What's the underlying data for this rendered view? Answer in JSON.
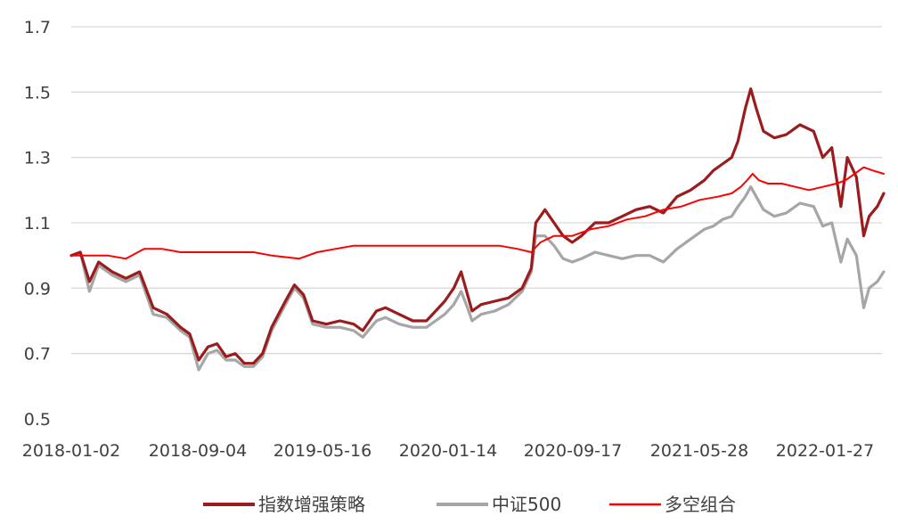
{
  "chart_data": {
    "type": "line",
    "title": "",
    "xlabel": "",
    "ylabel": "",
    "ylim": [
      0.5,
      1.7
    ],
    "yticks": [
      "0.5",
      "0.7",
      "0.9",
      "1.1",
      "1.3",
      "1.5",
      "1.7"
    ],
    "xticks": [
      "2018-01-02",
      "2018-09-04",
      "2019-05-16",
      "2020-01-14",
      "2020-09-17",
      "2021-05-28",
      "2022-01-27"
    ],
    "grid": true,
    "legend_position": "bottom",
    "series": [
      {
        "name": "指数增强策略",
        "color": "#9b1c1c",
        "points": [
          [
            0,
            1.0
          ],
          [
            10,
            1.01
          ],
          [
            20,
            0.92
          ],
          [
            30,
            0.98
          ],
          [
            45,
            0.95
          ],
          [
            60,
            0.93
          ],
          [
            75,
            0.95
          ],
          [
            90,
            0.84
          ],
          [
            105,
            0.82
          ],
          [
            120,
            0.78
          ],
          [
            130,
            0.76
          ],
          [
            140,
            0.68
          ],
          [
            150,
            0.72
          ],
          [
            160,
            0.73
          ],
          [
            170,
            0.69
          ],
          [
            180,
            0.7
          ],
          [
            190,
            0.67
          ],
          [
            200,
            0.67
          ],
          [
            210,
            0.7
          ],
          [
            220,
            0.78
          ],
          [
            235,
            0.86
          ],
          [
            245,
            0.91
          ],
          [
            255,
            0.88
          ],
          [
            265,
            0.8
          ],
          [
            280,
            0.79
          ],
          [
            295,
            0.8
          ],
          [
            310,
            0.79
          ],
          [
            320,
            0.77
          ],
          [
            335,
            0.83
          ],
          [
            345,
            0.84
          ],
          [
            360,
            0.82
          ],
          [
            375,
            0.8
          ],
          [
            390,
            0.8
          ],
          [
            400,
            0.83
          ],
          [
            410,
            0.86
          ],
          [
            420,
            0.9
          ],
          [
            428,
            0.95
          ],
          [
            435,
            0.88
          ],
          [
            440,
            0.83
          ],
          [
            450,
            0.85
          ],
          [
            465,
            0.86
          ],
          [
            480,
            0.87
          ],
          [
            495,
            0.9
          ],
          [
            505,
            0.96
          ],
          [
            510,
            1.1
          ],
          [
            520,
            1.14
          ],
          [
            530,
            1.1
          ],
          [
            540,
            1.06
          ],
          [
            550,
            1.04
          ],
          [
            560,
            1.06
          ],
          [
            575,
            1.1
          ],
          [
            590,
            1.1
          ],
          [
            605,
            1.12
          ],
          [
            620,
            1.14
          ],
          [
            635,
            1.15
          ],
          [
            650,
            1.13
          ],
          [
            665,
            1.18
          ],
          [
            680,
            1.2
          ],
          [
            695,
            1.23
          ],
          [
            705,
            1.26
          ],
          [
            715,
            1.28
          ],
          [
            725,
            1.3
          ],
          [
            732,
            1.35
          ],
          [
            740,
            1.45
          ],
          [
            746,
            1.51
          ],
          [
            752,
            1.45
          ],
          [
            760,
            1.38
          ],
          [
            772,
            1.36
          ],
          [
            785,
            1.37
          ],
          [
            800,
            1.4
          ],
          [
            815,
            1.38
          ],
          [
            825,
            1.3
          ],
          [
            835,
            1.33
          ],
          [
            845,
            1.15
          ],
          [
            852,
            1.3
          ],
          [
            862,
            1.24
          ],
          [
            870,
            1.06
          ],
          [
            876,
            1.12
          ],
          [
            885,
            1.15
          ],
          [
            892,
            1.19
          ]
        ]
      },
      {
        "name": "中证500",
        "color": "#a6a6a6",
        "points": [
          [
            0,
            1.0
          ],
          [
            10,
            1.01
          ],
          [
            20,
            0.89
          ],
          [
            30,
            0.97
          ],
          [
            45,
            0.94
          ],
          [
            60,
            0.92
          ],
          [
            75,
            0.94
          ],
          [
            90,
            0.82
          ],
          [
            105,
            0.81
          ],
          [
            120,
            0.77
          ],
          [
            130,
            0.75
          ],
          [
            140,
            0.65
          ],
          [
            150,
            0.7
          ],
          [
            160,
            0.71
          ],
          [
            170,
            0.68
          ],
          [
            180,
            0.68
          ],
          [
            190,
            0.66
          ],
          [
            200,
            0.66
          ],
          [
            210,
            0.69
          ],
          [
            220,
            0.77
          ],
          [
            235,
            0.85
          ],
          [
            245,
            0.9
          ],
          [
            255,
            0.87
          ],
          [
            265,
            0.79
          ],
          [
            280,
            0.78
          ],
          [
            295,
            0.78
          ],
          [
            310,
            0.77
          ],
          [
            320,
            0.75
          ],
          [
            335,
            0.8
          ],
          [
            345,
            0.81
          ],
          [
            360,
            0.79
          ],
          [
            375,
            0.78
          ],
          [
            390,
            0.78
          ],
          [
            400,
            0.8
          ],
          [
            410,
            0.82
          ],
          [
            420,
            0.85
          ],
          [
            428,
            0.89
          ],
          [
            435,
            0.84
          ],
          [
            440,
            0.8
          ],
          [
            450,
            0.82
          ],
          [
            465,
            0.83
          ],
          [
            480,
            0.85
          ],
          [
            495,
            0.89
          ],
          [
            505,
            0.95
          ],
          [
            510,
            1.06
          ],
          [
            520,
            1.06
          ],
          [
            530,
            1.03
          ],
          [
            540,
            0.99
          ],
          [
            550,
            0.98
          ],
          [
            560,
            0.99
          ],
          [
            575,
            1.01
          ],
          [
            590,
            1.0
          ],
          [
            605,
            0.99
          ],
          [
            620,
            1.0
          ],
          [
            635,
            1.0
          ],
          [
            650,
            0.98
          ],
          [
            665,
            1.02
          ],
          [
            680,
            1.05
          ],
          [
            695,
            1.08
          ],
          [
            705,
            1.09
          ],
          [
            715,
            1.11
          ],
          [
            725,
            1.12
          ],
          [
            732,
            1.15
          ],
          [
            740,
            1.18
          ],
          [
            746,
            1.21
          ],
          [
            752,
            1.18
          ],
          [
            760,
            1.14
          ],
          [
            772,
            1.12
          ],
          [
            785,
            1.13
          ],
          [
            800,
            1.16
          ],
          [
            815,
            1.15
          ],
          [
            825,
            1.09
          ],
          [
            835,
            1.1
          ],
          [
            845,
            0.98
          ],
          [
            852,
            1.05
          ],
          [
            862,
            1.0
          ],
          [
            870,
            0.84
          ],
          [
            876,
            0.9
          ],
          [
            885,
            0.92
          ],
          [
            892,
            0.95
          ]
        ]
      },
      {
        "name": "多空组合",
        "color": "#ff0000",
        "points": [
          [
            0,
            1.0
          ],
          [
            20,
            1.0
          ],
          [
            40,
            1.0
          ],
          [
            60,
            0.99
          ],
          [
            80,
            1.02
          ],
          [
            100,
            1.02
          ],
          [
            120,
            1.01
          ],
          [
            140,
            1.01
          ],
          [
            160,
            1.01
          ],
          [
            180,
            1.01
          ],
          [
            200,
            1.01
          ],
          [
            220,
            1.0
          ],
          [
            250,
            0.99
          ],
          [
            270,
            1.01
          ],
          [
            290,
            1.02
          ],
          [
            310,
            1.03
          ],
          [
            330,
            1.03
          ],
          [
            350,
            1.03
          ],
          [
            370,
            1.03
          ],
          [
            390,
            1.03
          ],
          [
            410,
            1.03
          ],
          [
            430,
            1.03
          ],
          [
            450,
            1.03
          ],
          [
            470,
            1.03
          ],
          [
            490,
            1.02
          ],
          [
            505,
            1.01
          ],
          [
            515,
            1.04
          ],
          [
            530,
            1.06
          ],
          [
            550,
            1.06
          ],
          [
            570,
            1.08
          ],
          [
            590,
            1.09
          ],
          [
            610,
            1.11
          ],
          [
            630,
            1.12
          ],
          [
            650,
            1.14
          ],
          [
            670,
            1.15
          ],
          [
            690,
            1.17
          ],
          [
            710,
            1.18
          ],
          [
            725,
            1.19
          ],
          [
            735,
            1.21
          ],
          [
            742,
            1.23
          ],
          [
            748,
            1.25
          ],
          [
            755,
            1.23
          ],
          [
            765,
            1.22
          ],
          [
            780,
            1.22
          ],
          [
            795,
            1.21
          ],
          [
            810,
            1.2
          ],
          [
            825,
            1.21
          ],
          [
            840,
            1.22
          ],
          [
            850,
            1.23
          ],
          [
            860,
            1.25
          ],
          [
            870,
            1.27
          ],
          [
            880,
            1.26
          ],
          [
            892,
            1.25
          ]
        ]
      }
    ]
  }
}
